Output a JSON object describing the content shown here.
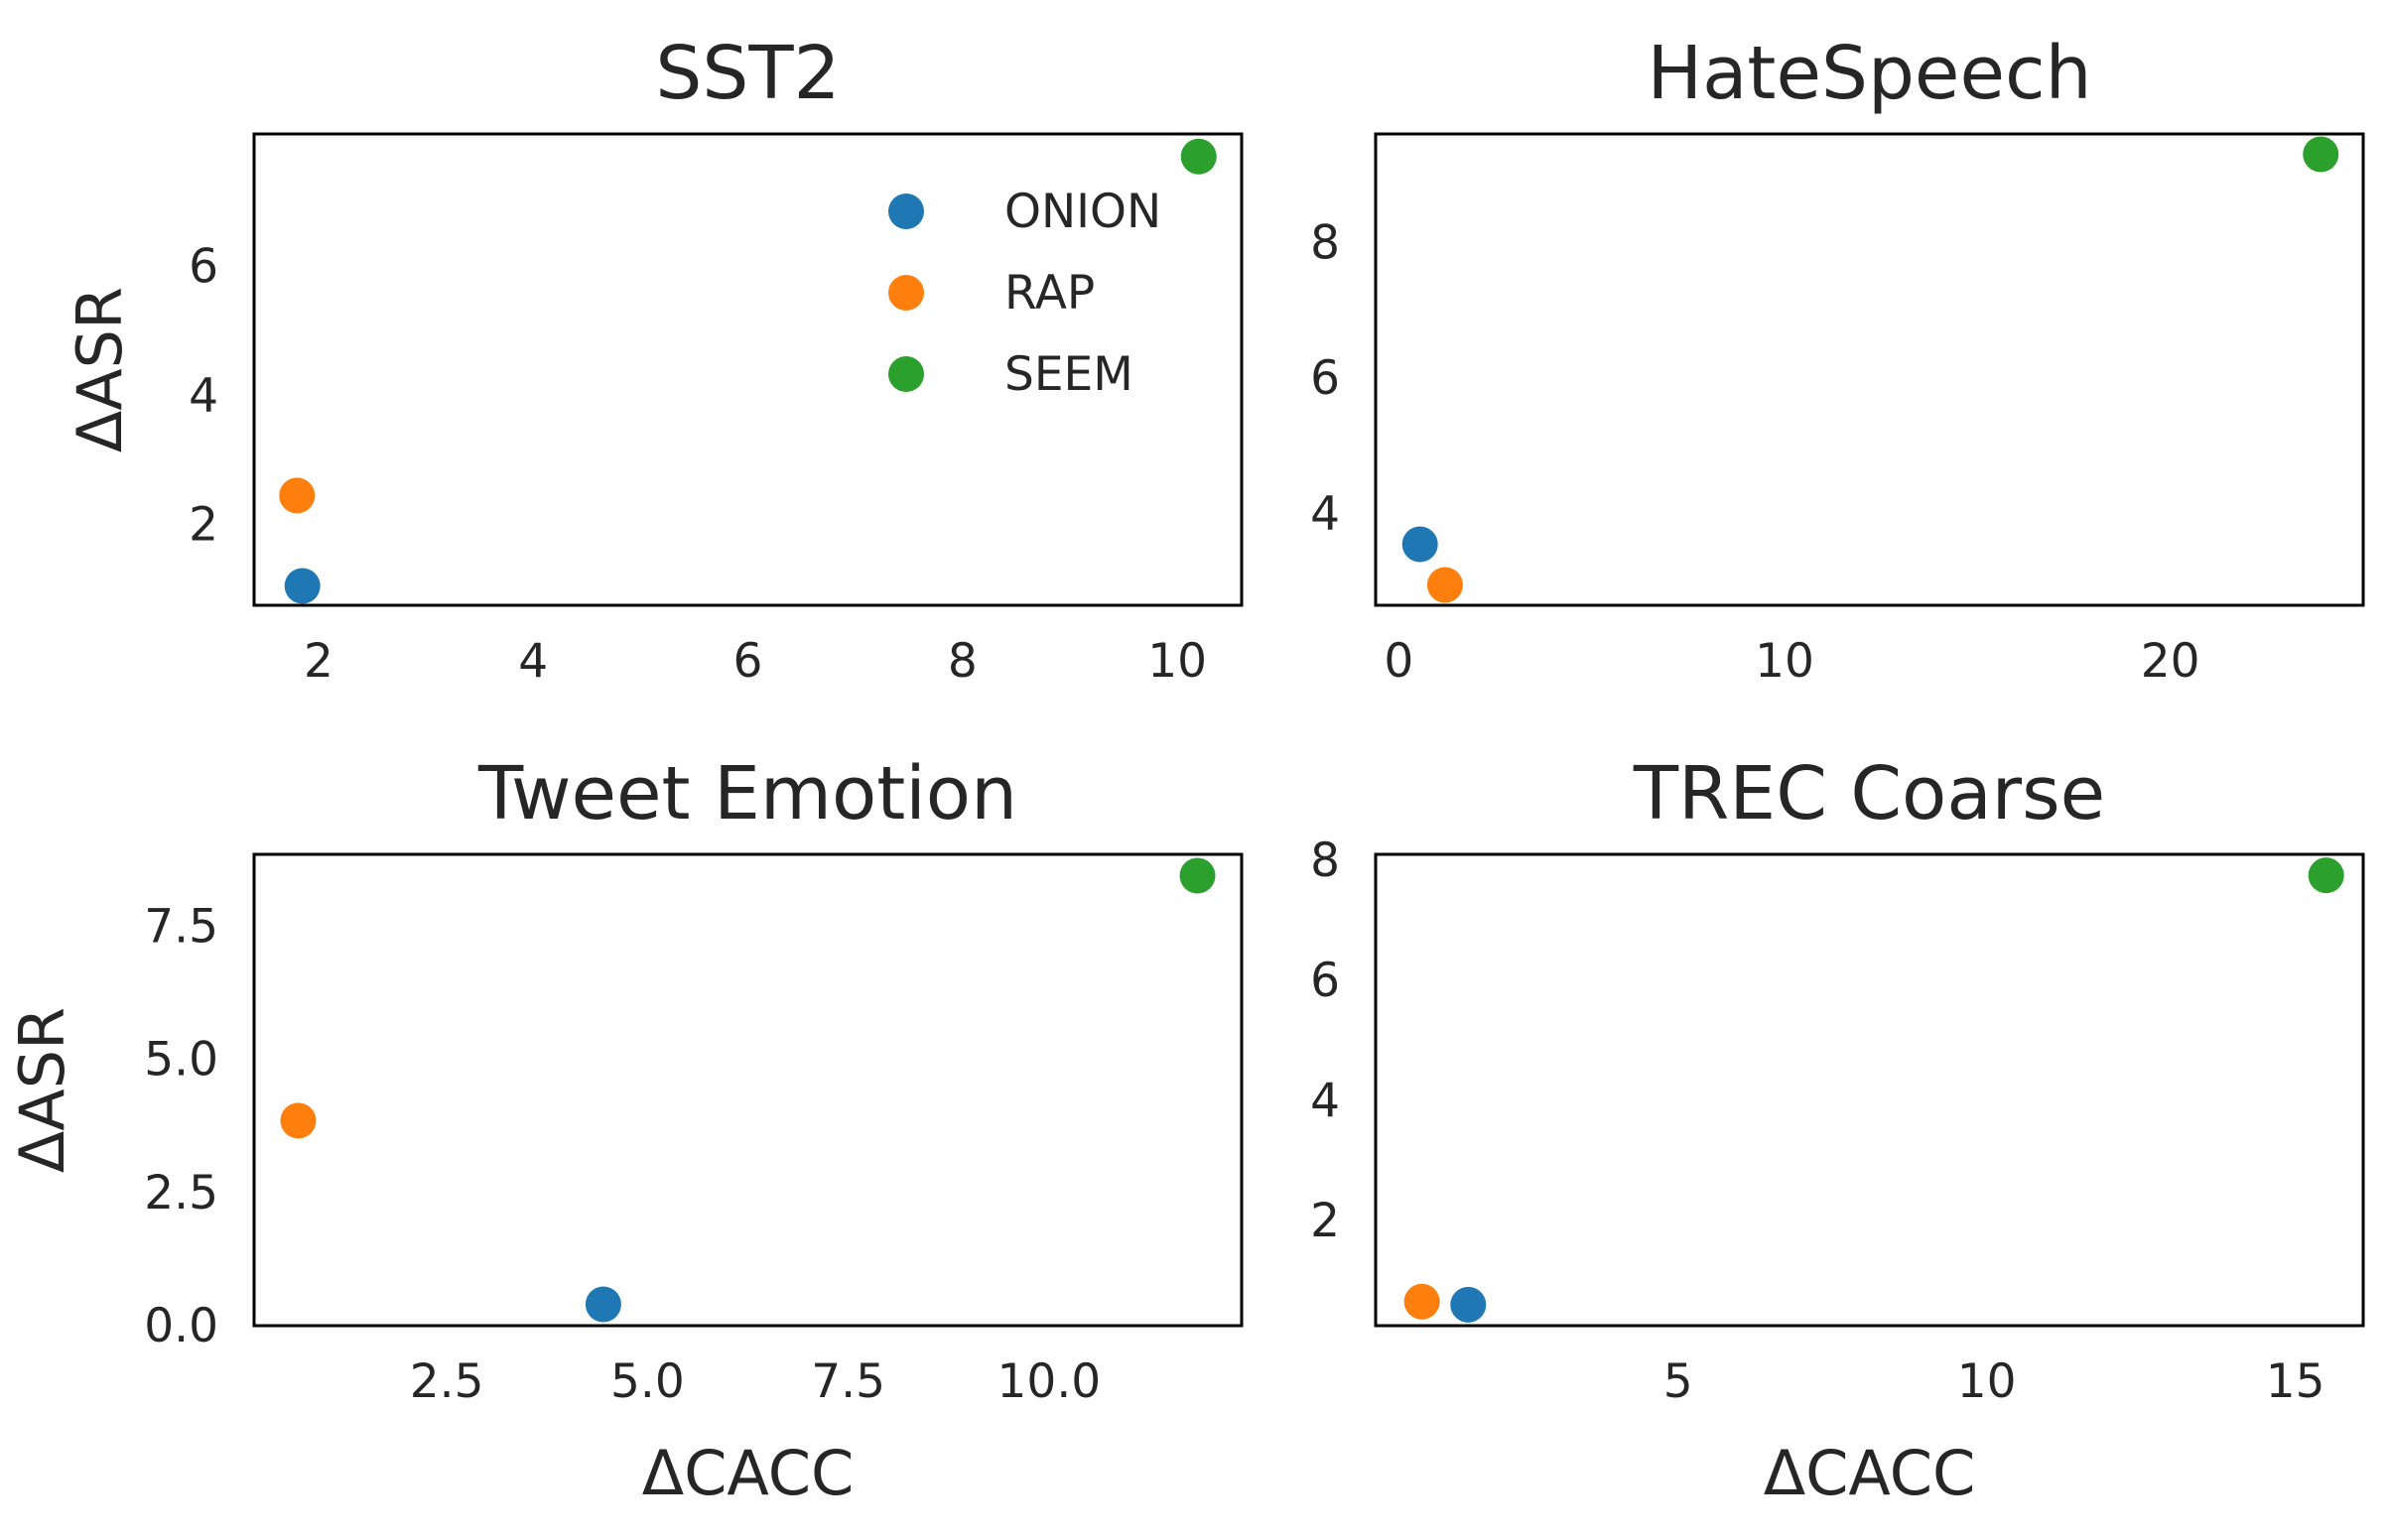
{
  "colors": {
    "ONION": "#1f77b4",
    "RAP": "#ff7f0e",
    "SEEM": "#2ca02c"
  },
  "chart_data": [
    {
      "type": "scatter",
      "title": "SST2",
      "xlabel": "",
      "ylabel": "ΔASR",
      "xlim": [
        1.4,
        10.6
      ],
      "ylim": [
        0.75,
        8.05
      ],
      "xticks": [
        2,
        4,
        6,
        8,
        10
      ],
      "yticks": [
        2,
        4,
        6
      ],
      "series": [
        {
          "name": "ONION",
          "x": 1.85,
          "y": 1.05
        },
        {
          "name": "RAP",
          "x": 1.8,
          "y": 2.45
        },
        {
          "name": "SEEM",
          "x": 10.2,
          "y": 7.7
        }
      ],
      "legend": {
        "position": "top-right",
        "entries": [
          "ONION",
          "RAP",
          "SEEM"
        ]
      }
    },
    {
      "type": "scatter",
      "title": "HateSpeech",
      "xlabel": "",
      "ylabel": "",
      "xlim": [
        -0.6,
        25.0
      ],
      "ylim": [
        2.65,
        9.6
      ],
      "xticks": [
        0,
        10,
        20
      ],
      "yticks": [
        4,
        6,
        8
      ],
      "series": [
        {
          "name": "ONION",
          "x": 0.55,
          "y": 3.55
        },
        {
          "name": "RAP",
          "x": 1.2,
          "y": 2.95
        },
        {
          "name": "SEEM",
          "x": 23.9,
          "y": 9.3
        }
      ]
    },
    {
      "type": "scatter",
      "title": "Tweet Emotion",
      "xlabel": "ΔCACC",
      "ylabel": "ΔASR",
      "xlim": [
        0.1,
        12.4
      ],
      "ylim": [
        0.0,
        8.85
      ],
      "xticks": [
        2.5,
        5.0,
        7.5,
        10.0
      ],
      "xtick_labels": [
        "2.5",
        "5.0",
        "7.5",
        "10.0"
      ],
      "yticks": [
        0.0,
        2.5,
        5.0,
        7.5
      ],
      "ytick_labels": [
        "0.0",
        "2.5",
        "5.0",
        "7.5"
      ],
      "series": [
        {
          "name": "ONION",
          "x": 4.45,
          "y": 0.4
        },
        {
          "name": "RAP",
          "x": 0.65,
          "y": 3.85
        },
        {
          "name": "SEEM",
          "x": 11.85,
          "y": 8.45
        }
      ]
    },
    {
      "type": "scatter",
      "title": "TREC Coarse",
      "xlabel": "ΔCACC",
      "ylabel": "",
      "xlim": [
        0.1,
        16.1
      ],
      "ylim": [
        0.25,
        8.1
      ],
      "xticks": [
        5,
        10,
        15
      ],
      "yticks": [
        2,
        4,
        6,
        8
      ],
      "series": [
        {
          "name": "ONION",
          "x": 1.6,
          "y": 0.6
        },
        {
          "name": "RAP",
          "x": 0.85,
          "y": 0.65
        },
        {
          "name": "SEEM",
          "x": 15.5,
          "y": 7.75
        }
      ]
    }
  ]
}
